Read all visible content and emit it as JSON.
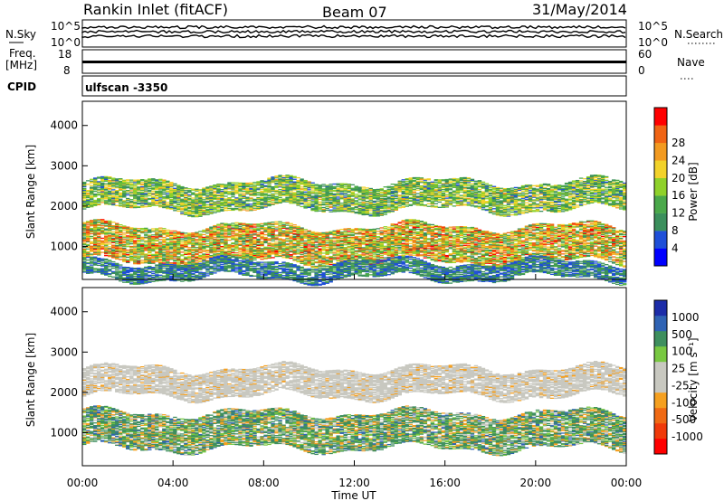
{
  "header": {
    "station": "Rankin Inlet (fitACF)",
    "beam": "Beam 07",
    "date": "31/May/2014"
  },
  "top_panels": {
    "nsky_label": "N.Sky",
    "nsearch_label": "N.Search",
    "nsky_ticks": [
      "10^5",
      "10^0"
    ],
    "nsearch_ticks": [
      "10^5",
      "10^0"
    ],
    "freq_label": "Freq.",
    "freq_unit": "[MHz]",
    "freq_ticks": [
      "18",
      "8"
    ],
    "nave_label": "Nave",
    "nave_ticks": [
      "60",
      "0"
    ],
    "cpid_label": "CPID",
    "cpid_value": "ulfscan  -3350"
  },
  "colors": {
    "power_scale": [
      "#0000ff",
      "#1f4fd8",
      "#3b8f5c",
      "#4aa84a",
      "#8fd12a",
      "#f2d22a",
      "#f29a20",
      "#f06414",
      "#ff0000"
    ],
    "velocity_scale": [
      "#1c2ca8",
      "#2f63b4",
      "#3e8f5e",
      "#78c841",
      "#c8c8c0",
      "#c8c8c0",
      "#f5a020",
      "#f06a14",
      "#f03a0a",
      "#ff0000"
    ]
  },
  "chart_data": [
    {
      "type": "heatmap",
      "name": "power-panel",
      "xlabel": "Time UT",
      "ylabel": "Slant Range [km]",
      "xlim": [
        "00:00",
        "24:00"
      ],
      "x_ticks": [
        "00:00",
        "04:00",
        "08:00",
        "12:00",
        "16:00",
        "20:00",
        "00:00"
      ],
      "ylim": [
        180,
        4600
      ],
      "y_ticks": [
        1000,
        2000,
        3000,
        4000
      ],
      "colorbar_label": "Power [dB]",
      "colorbar_ticks": [
        4,
        8,
        12,
        16,
        20,
        24,
        28
      ],
      "bands": [
        {
          "feature": "upper echo band",
          "range_km": [
            1900,
            2600
          ],
          "time_h": [
            0,
            24
          ],
          "power_db": [
            6,
            22
          ]
        },
        {
          "feature": "lower echo band",
          "range_km": [
            600,
            1500
          ],
          "time_h": [
            0,
            24
          ],
          "power_db": [
            8,
            30
          ]
        },
        {
          "feature": "near-range clutter",
          "range_km": [
            200,
            600
          ],
          "time_h": [
            0,
            24
          ],
          "power_db": [
            4,
            12
          ]
        }
      ]
    },
    {
      "type": "heatmap",
      "name": "velocity-panel",
      "xlabel": "Time UT",
      "ylabel": "Slant Range [km]",
      "xlim": [
        "00:00",
        "24:00"
      ],
      "x_ticks": [
        "00:00",
        "04:00",
        "08:00",
        "12:00",
        "16:00",
        "20:00",
        "00:00"
      ],
      "ylim": [
        180,
        4600
      ],
      "y_ticks": [
        1000,
        2000,
        3000,
        4000
      ],
      "colorbar_label": "Velocity [m s⁻¹]",
      "colorbar_ticks": [
        "1000",
        "500",
        "100",
        "25",
        "-25",
        "-100",
        "-500",
        "-1000"
      ],
      "bands": [
        {
          "feature": "upper echo band (ground scatter)",
          "range_km": [
            1900,
            2600
          ],
          "time_h": [
            0,
            24
          ],
          "velocity": [
            -25,
            25
          ]
        },
        {
          "feature": "lower echo band",
          "range_km": [
            600,
            1500
          ],
          "time_h": [
            0,
            24
          ],
          "velocity": [
            -500,
            500
          ]
        }
      ]
    }
  ]
}
